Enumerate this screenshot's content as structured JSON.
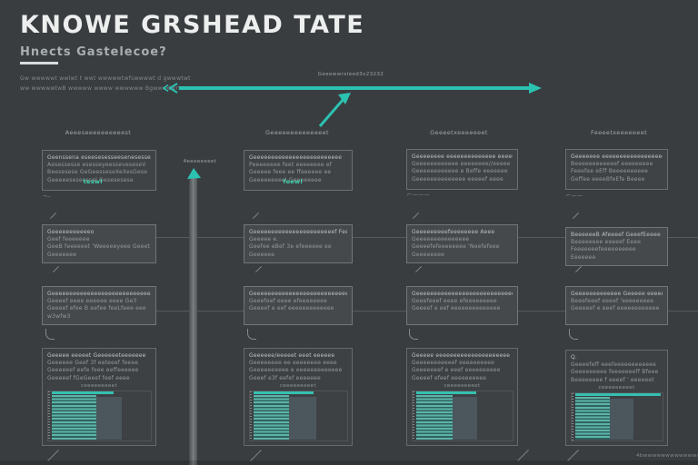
{
  "header": {
    "title": "KNOWE GRSHEAD TATE",
    "subtitle": "Hnects Gastelecoe?",
    "intro_lines": [
      "Gw wwwwwt wwlwt t wwt wwwwwtwfswwwwt d gwwwtwt",
      "ww wwwwwtwB wwwww wwww wwwwww Bgwwwdwrtwo"
    ]
  },
  "top_arrow": {
    "label": "Geeewwrxleed3x23232"
  },
  "axis_bar": {
    "label": "4eeeeeeeet"
  },
  "footer": {
    "caption": "4bwwwwwwwwwwwwwwt"
  },
  "accent_color": "#2cc2b2",
  "columns": [
    {
      "header": "Aeeeseeeeeeeeeest",
      "cards": {
        "r1": {
          "lines": [
            "Geenssena eseesesesseesenesesse",
            "Aesessesse  esesseyeesseveseseV",
            "Beesesese  GeGeesseseXeXesGese",
            "Geeeeesesesesel Gesesesese"
          ],
          "accent": "teswl",
          "caption": "¬–"
        },
        "r2": {
          "lines": [
            "Geeeeeeeeeeeo",
            "Geef feeeeeee",
            "GeeB feeeeeet 'Weeeeeyeee Geeet",
            "Geeeeeee"
          ]
        },
        "r3": {
          "lines": [
            "Geeeeeeeeeeeeeeeeeeeeeeeeeeeeeee",
            "Geeeef eeee  eeeeee eeee   Ge3",
            "Geeeef efee B eefee feeLfeee eee",
            "w3wfw3"
          ]
        },
        "r4": {
          "lines": [
            "Geeeee  eeeeet Geeeeeeteeeeeee",
            "Geeeeee Geef 3f eeteeef feeee",
            "Geeeeeef  eefe feee eeffeeeeee",
            "Geeeeef  fGeGeeef   feef  eeee"
          ],
          "chart_caption": "ceeeeeeeeet",
          "chart": {
            "topline": "60%",
            "stripes": "45%",
            "gray": "26%"
          }
        }
      }
    },
    {
      "header": "Geeeeeeeeeeeeeet",
      "cards": {
        "r1": {
          "lines": [
            "Geeeeeeeeeeeeeeeeeeeeeeeee",
            "Peeeeeeee feet eeeeeeee ef",
            "Geeeee feee ee ffeeeeee ee",
            "Geeeeeeeeel Geeeeeeee"
          ],
          "accent": "feewl"
        },
        "r2": {
          "lines": [
            "Geeeeeeeeeeeeeeeeeeeeeeef Feee",
            "Geeeee e.",
            "Geefee eBef 3e efeeeeee ee",
            "Geeeeee"
          ]
        },
        "r3": {
          "lines": [
            "Geeeeeeeeeeeeeeeeeeeeeeeeeeeeee",
            "Geeefeef eeee  efeeeeeeee",
            "Geeeef e eef eeeeeeeeeeeee"
          ]
        },
        "r4": {
          "lines": [
            "Geeeeee/eeeeet  eeet eeeeee",
            "Geeeeeeee ee eeeeeeee eeee",
            "Geeeeeeeeee e eeeeeeeeeeeee",
            "Geeef  e3f  eefef eeeeeee"
          ],
          "chart_caption": "ceeeeeeeeet",
          "chart": {
            "topline": "62%",
            "stripes": "38%",
            "gray": "30%"
          }
        }
      }
    },
    {
      "header": "Geeeetxeeeeeeet",
      "cards": {
        "r1": {
          "lines": [
            "Geeeeeeee eeeeeeeeeeeeee eeeeee",
            "Geeeeeeeeeeee eeeeeeee//eeeee",
            "Geeeeeeeeeeee e Beffe eeeeeee",
            "Geeeeeeeeeeeeee eeeeef eeee"
          ],
          "caption": "⌐———"
        },
        "r2": {
          "lines": [
            "Geeeeeeeeefeeeeeeee Aeee",
            "Geeeeeeeeeeeeeee",
            "Geeeefefeeeeeeee  'Neefefeee",
            "Geeeeeeee"
          ]
        },
        "r3": {
          "lines": [
            "Geeeeeeeeeeeeeeeeeeeeeeeeeeeee",
            "Geeefeeef eeee  efeeeeeeeee",
            "Geeeef e eef eeeeeeeeeeeeee"
          ]
        },
        "r4": {
          "lines": [
            "Geeeee eeeeeeeeeeeeeeeeeeeee",
            "Geeeeeeeeeeef  eeeeeeeeee",
            "Geeeeeeef e eeef eeeeeeeeee",
            "Geeeef  efeef  eeeeeeeeee"
          ],
          "chart_caption": "ceeeeeeeeet",
          "chart": {
            "topline": "60%",
            "stripes": "38%",
            "gray": "26%"
          }
        }
      }
    },
    {
      "header": "Feeeetxeeeeeeet",
      "cards": {
        "r1": {
          "lines": [
            "Geeeeeee  eeeeeeeeeeeeeeeeeee",
            "Beeeeeeeeeeeef eeeeeeeee",
            "Feeefee eEff  Beeeeeeeeee",
            "Geffee eeeeBfeEfe Beeee"
          ],
          "caption": "⌐——"
        },
        "r2": {
          "lines": [
            "BeeeeeeB Afeeeef GeeefEeeee",
            "Beeeeeeee eeeeef  Eeee",
            "Feeeeeeefeeeeeeeeee",
            "Eeeeeee"
          ]
        },
        "r3": {
          "lines": [
            "Geeeeeeeeeeeee Geeeee eeeeee",
            "Beeefeeef eeeef  'eeeeeeeee",
            "Geeeeef e eeef eeeeeeeeeeee"
          ]
        },
        "r4": {
          "lines": [
            "Q.",
            "Geeeefeff eeefeeeeeeeeeeee",
            "Geeeeeeeee feeeeeeeff Bfeee",
            "Beeeeeeee f eeeef  ' eeeeeet"
          ],
          "chart_caption": "ceeeeeeeeet",
          "chart": {
            "topline": "94%",
            "stripes": "40%",
            "gray": "27%"
          }
        }
      }
    }
  ]
}
